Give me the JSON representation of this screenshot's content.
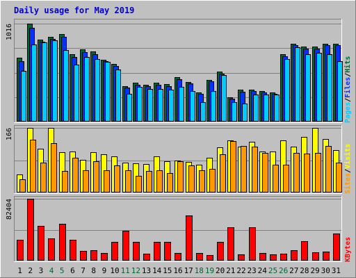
{
  "chart_data": {
    "type": "bar",
    "title": "Daily usage for May 2019",
    "categories": [
      "1",
      "2",
      "3",
      "4",
      "5",
      "6",
      "7",
      "8",
      "9",
      "10",
      "11",
      "12",
      "13",
      "14",
      "15",
      "16",
      "17",
      "18",
      "19",
      "20",
      "21",
      "22",
      "23",
      "24",
      "25",
      "26",
      "27",
      "28",
      "29",
      "30",
      "31"
    ],
    "weekend_days": [
      "4",
      "5",
      "11",
      "12",
      "18",
      "19",
      "25",
      "26"
    ],
    "panels": [
      {
        "id": "hits",
        "ymax": 1016,
        "tick_label": "1016",
        "legend": [
          "Pages",
          "/",
          "Files",
          "/",
          "Hits"
        ],
        "series": [
          {
            "name": "Hits",
            "color": "#006633",
            "values": [
              660,
              1016,
              850,
              880,
              910,
              700,
              750,
              730,
              640,
              600,
              370,
              400,
              385,
              400,
              390,
              460,
              410,
              300,
              430,
              520,
              250,
              330,
              330,
              320,
              300,
              700,
              810,
              780,
              780,
              810,
              810
            ]
          },
          {
            "name": "Files",
            "color": "#0033ff",
            "values": [
              630,
              970,
              830,
              860,
              880,
              670,
              720,
              700,
              625,
              580,
              350,
              385,
              370,
              385,
              370,
              440,
              395,
              285,
              415,
              500,
              235,
              310,
              315,
              305,
              290,
              680,
              790,
              760,
              760,
              790,
              790
            ]
          },
          {
            "name": "Pages",
            "color": "#00ccff",
            "values": [
              525,
              800,
              820,
              840,
              740,
              590,
              670,
              650,
              620,
              540,
              290,
              360,
              340,
              340,
              330,
              360,
              320,
              200,
              320,
              480,
              200,
              190,
              280,
              280,
              280,
              650,
              770,
              700,
              710,
              700,
              630
            ]
          }
        ]
      },
      {
        "id": "visits",
        "ymax": 166,
        "tick_label": "166",
        "legend": [
          "Sites",
          "/",
          "Visits"
        ],
        "series": [
          {
            "name": "Visits",
            "color": "#ffff00",
            "values": [
              46,
              166,
              112,
              166,
              103,
              106,
              83,
              103,
              99,
              92,
              77,
              75,
              74,
              92,
              80,
              82,
              78,
              71,
              90,
              116,
              134,
              117,
              130,
              106,
              106,
              134,
              118,
              143,
              166,
              137,
              108
            ]
          },
          {
            "name": "Sites",
            "color": "#ff9900",
            "values": [
              34,
              135,
              77,
              127,
              56,
              90,
              57,
              80,
              58,
              70,
              58,
              42,
              55,
              58,
              50,
              81,
              70,
              57,
              61,
              99,
              132,
              119,
              117,
              102,
              71,
              71,
              101,
              100,
              102,
              120,
              76
            ]
          }
        ]
      },
      {
        "id": "kbytes",
        "ymax": 82404,
        "tick_label": "82404",
        "legend": [
          "KBytes"
        ],
        "series": [
          {
            "name": "KBytes",
            "color": "#ff0000",
            "values": [
              28000,
              82404,
              46000,
              30000,
              49000,
              28000,
              13000,
              14000,
              10000,
              25000,
              40000,
              25000,
              9000,
              25000,
              25000,
              10000,
              60000,
              10000,
              7000,
              25000,
              44000,
              8000,
              44000,
              10000,
              8000,
              9000,
              14000,
              26000,
              11000,
              12000,
              36000
            ]
          }
        ]
      }
    ]
  }
}
